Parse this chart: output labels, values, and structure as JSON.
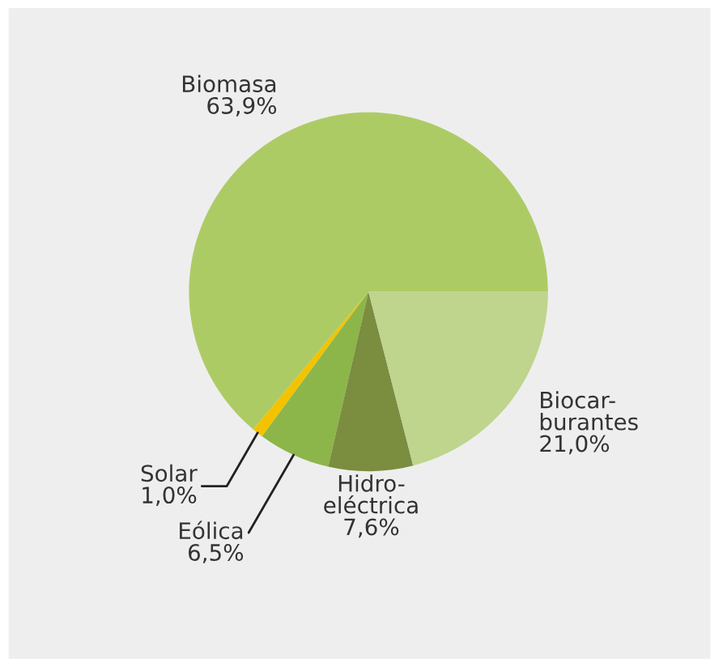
{
  "chart_data": {
    "type": "pie",
    "categories": [
      "Biomasa",
      "Solar",
      "Eólica",
      "Hidro-\neléctrica",
      "Biocar-\nburantes"
    ],
    "values": [
      63.9,
      1.0,
      6.5,
      7.6,
      21.0
    ],
    "value_labels": [
      "63,9%",
      "1,0%",
      "6,5%",
      "7,6%",
      "21,0%"
    ],
    "colors": [
      "#adcb65",
      "#f3c300",
      "#8cb64a",
      "#7b8d3f",
      "#bfd48d"
    ],
    "legend": false
  }
}
